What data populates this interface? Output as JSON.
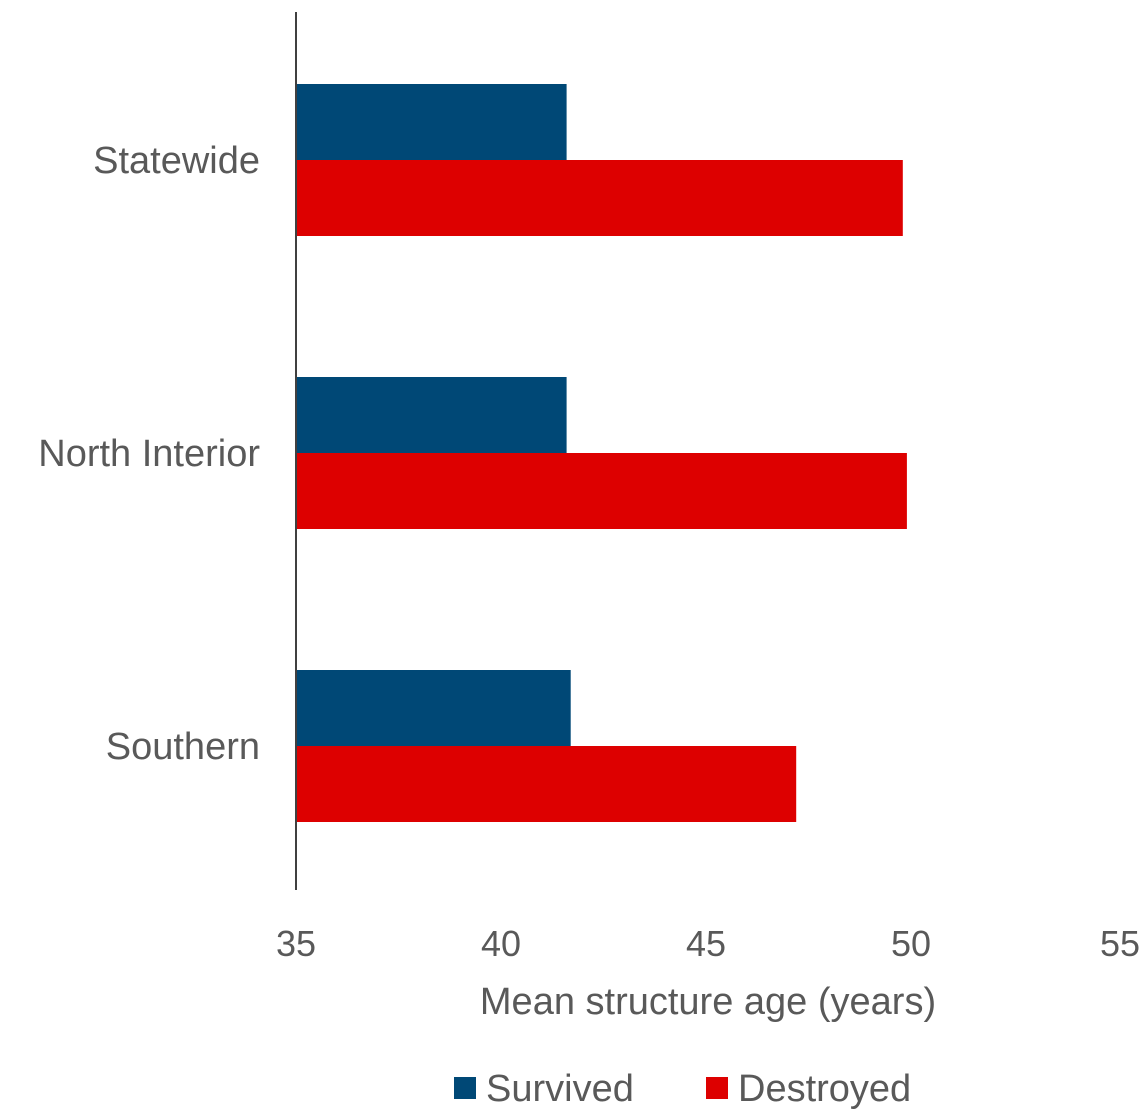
{
  "chart_data": {
    "type": "bar",
    "orientation": "horizontal",
    "categories": [
      "Statewide",
      "North Interior",
      "Southern"
    ],
    "series": [
      {
        "name": "Survived",
        "color": "#004876",
        "values": [
          41.6,
          41.6,
          41.7
        ]
      },
      {
        "name": "Destroyed",
        "color": "#DD0000",
        "values": [
          49.8,
          49.9,
          47.2
        ]
      }
    ],
    "xlabel": "Mean structure age (years)",
    "ylabel": "",
    "xlim": [
      35,
      55
    ],
    "xticks": [
      35,
      40,
      45,
      50,
      55
    ],
    "grid": false,
    "legend": "bottom"
  }
}
